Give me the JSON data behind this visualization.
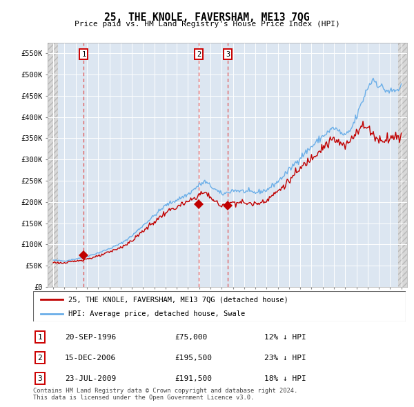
{
  "title": "25, THE KNOLE, FAVERSHAM, ME13 7QG",
  "subtitle": "Price paid vs. HM Land Registry's House Price Index (HPI)",
  "x_start_year": 1994,
  "x_end_year": 2025,
  "y_min": 0,
  "y_max": 575000,
  "y_ticks": [
    0,
    50000,
    100000,
    150000,
    200000,
    250000,
    300000,
    350000,
    400000,
    450000,
    500000,
    550000
  ],
  "y_tick_labels": [
    "£0",
    "£50K",
    "£100K",
    "£150K",
    "£200K",
    "£250K",
    "£300K",
    "£350K",
    "£400K",
    "£450K",
    "£500K",
    "£550K"
  ],
  "sale_year_floats": [
    1996.72,
    2006.958,
    2009.555
  ],
  "sale_prices": [
    75000,
    195500,
    191500
  ],
  "legend_line1": "25, THE KNOLE, FAVERSHAM, ME13 7QG (detached house)",
  "legend_line2": "HPI: Average price, detached house, Swale",
  "table_rows": [
    [
      "1",
      "20-SEP-1996",
      "£75,000",
      "12% ↓ HPI"
    ],
    [
      "2",
      "15-DEC-2006",
      "£195,500",
      "23% ↓ HPI"
    ],
    [
      "3",
      "23-JUL-2009",
      "£191,500",
      "18% ↓ HPI"
    ]
  ],
  "footer": "Contains HM Land Registry data © Crown copyright and database right 2024.\nThis data is licensed under the Open Government Licence v3.0.",
  "hpi_color": "#6aaee8",
  "price_color": "#c00000",
  "bg_color": "#dce6f1",
  "grid_color": "#ffffff",
  "dashed_line_color": "#e05050",
  "hpi_anchors_x": [
    1994.0,
    1995.0,
    1996.0,
    1997.0,
    1998.0,
    1999.0,
    2000.0,
    2001.0,
    2002.0,
    2003.0,
    2004.0,
    2005.0,
    2006.0,
    2007.0,
    2007.5,
    2008.0,
    2008.5,
    2009.0,
    2009.5,
    2010.0,
    2011.0,
    2012.0,
    2013.0,
    2014.0,
    2015.0,
    2016.0,
    2017.0,
    2018.0,
    2019.0,
    2019.5,
    2020.0,
    2020.5,
    2021.0,
    2021.5,
    2022.0,
    2022.5,
    2023.0,
    2023.5,
    2024.0,
    2024.5,
    2025.0
  ],
  "hpi_anchors_y": [
    63000,
    61000,
    66000,
    72000,
    80000,
    90000,
    102000,
    120000,
    145000,
    168000,
    192000,
    205000,
    218000,
    240000,
    248000,
    238000,
    228000,
    218000,
    222000,
    228000,
    225000,
    222000,
    228000,
    248000,
    275000,
    305000,
    330000,
    355000,
    375000,
    365000,
    355000,
    370000,
    400000,
    435000,
    470000,
    490000,
    475000,
    465000,
    460000,
    462000,
    470000
  ],
  "pp_anchors_x": [
    1994.0,
    1995.0,
    1996.0,
    1997.0,
    1998.0,
    1999.0,
    2000.0,
    2001.0,
    2002.0,
    2003.0,
    2004.0,
    2005.0,
    2006.0,
    2006.5,
    2007.0,
    2007.5,
    2008.0,
    2008.5,
    2009.0,
    2009.5,
    2010.0,
    2011.0,
    2012.0,
    2013.0,
    2014.0,
    2015.0,
    2016.0,
    2017.0,
    2018.0,
    2019.0,
    2019.5,
    2020.0,
    2020.5,
    2021.0,
    2021.5,
    2022.0,
    2022.5,
    2023.0,
    2023.5,
    2024.0,
    2025.0
  ],
  "pp_anchors_y": [
    58000,
    56000,
    61000,
    66000,
    72000,
    82000,
    93000,
    108000,
    132000,
    153000,
    175000,
    188000,
    200000,
    208000,
    218000,
    222000,
    212000,
    200000,
    188000,
    195000,
    200000,
    198000,
    195000,
    205000,
    225000,
    250000,
    278000,
    305000,
    330000,
    348000,
    338000,
    330000,
    348000,
    368000,
    378000,
    375000,
    360000,
    345000,
    348000,
    352000,
    355000
  ]
}
